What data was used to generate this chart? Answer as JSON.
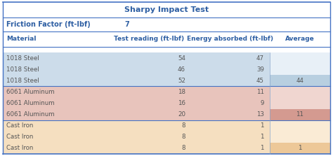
{
  "title": "Sharpy Impact Test",
  "friction_label": "Friction Factor (ft-lbf)",
  "friction_value": "7",
  "col_headers": [
    "Material",
    "Test reading (ft-lbf)",
    "Energy absorbed (ft-lbf)",
    "Average"
  ],
  "rows": [
    {
      "material": "1018 Steel",
      "test": "54",
      "energy": "47",
      "avg": ""
    },
    {
      "material": "1018 Steel",
      "test": "46",
      "energy": "39",
      "avg": ""
    },
    {
      "material": "1018 Steel",
      "test": "52",
      "energy": "45",
      "avg": "44"
    },
    {
      "material": "6061 Aluminum",
      "test": "18",
      "energy": "11",
      "avg": ""
    },
    {
      "material": "6061 Aluminum",
      "test": "16",
      "energy": "9",
      "avg": ""
    },
    {
      "material": "6061 Aluminum",
      "test": "20",
      "energy": "13",
      "avg": "11"
    },
    {
      "material": "Cast Iron",
      "test": "8",
      "energy": "1",
      "avg": ""
    },
    {
      "material": "Cast Iron",
      "test": "8",
      "energy": "1",
      "avg": ""
    },
    {
      "material": "Cast Iron",
      "test": "8",
      "energy": "1",
      "avg": "1"
    }
  ],
  "row_colors_main": [
    "#ccdcea",
    "#ccdcea",
    "#ccdcea",
    "#e8c4bc",
    "#e8c4bc",
    "#e8c4bc",
    "#f5dfc0",
    "#f5dfc0",
    "#f5dfc0"
  ],
  "avg_col_colors": [
    "#e8f0f7",
    "#e8f0f7",
    "#b8cfe0",
    "#f0d6d0",
    "#f0d6d0",
    "#d49a90",
    "#faebd5",
    "#faebd5",
    "#edc898"
  ],
  "header_text_color": "#2e5fa3",
  "title_color": "#2e5fa3",
  "data_text_color": "#555555",
  "border_color": "#4472c4",
  "line_color": "#8ba7cc"
}
